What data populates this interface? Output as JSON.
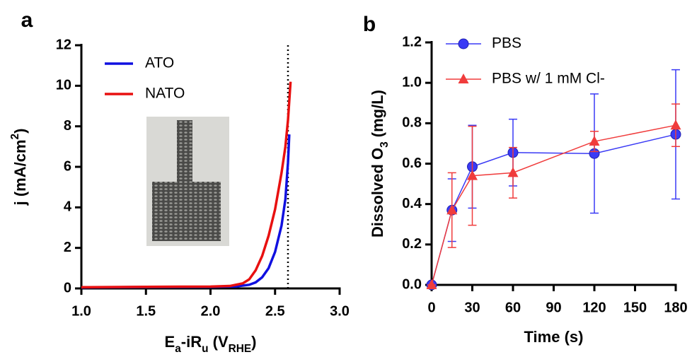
{
  "chart_data": [
    {
      "type": "line",
      "panel_label": "a",
      "x_label": [
        {
          "text": "E"
        },
        {
          "text": "a",
          "style": "sub"
        },
        {
          "text": "-iR"
        },
        {
          "text": "u",
          "style": "sub"
        },
        {
          "text": " (V"
        },
        {
          "text": "RHE",
          "style": "sub"
        },
        {
          "text": ")"
        }
      ],
      "y_label": [
        {
          "text": "j (mA/cm"
        },
        {
          "text": "2",
          "style": "super"
        },
        {
          "text": ")"
        }
      ],
      "xlim": [
        1,
        3
      ],
      "xticks": [
        {
          "value": 1,
          "label": "1.0"
        },
        1.5,
        {
          "value": 2,
          "label": "2.0"
        },
        2.5,
        {
          "value": 3,
          "label": "3.0"
        }
      ],
      "ylim": [
        0,
        12
      ],
      "yticks": [
        0,
        2,
        4,
        6,
        8,
        10,
        12
      ],
      "vline": 2.6,
      "series": [
        {
          "name": "ATO",
          "color": "#1010e0",
          "x": [
            1.0,
            1.5,
            2.0,
            2.2,
            2.3,
            2.35,
            2.4,
            2.45,
            2.5,
            2.55,
            2.58,
            2.6,
            2.61
          ],
          "values": [
            0.05,
            0.07,
            0.08,
            0.1,
            0.18,
            0.3,
            0.55,
            1.0,
            1.8,
            3.1,
            4.4,
            6.2,
            7.6
          ]
        },
        {
          "name": "NATO",
          "color": "#e81010",
          "x": [
            1.0,
            1.5,
            2.0,
            2.15,
            2.25,
            2.3,
            2.35,
            2.4,
            2.45,
            2.5,
            2.55,
            2.58,
            2.6,
            2.62
          ],
          "values": [
            0.06,
            0.08,
            0.09,
            0.12,
            0.25,
            0.45,
            0.9,
            1.6,
            2.6,
            3.9,
            5.7,
            7.0,
            8.3,
            10.2
          ]
        }
      ]
    },
    {
      "type": "line",
      "panel_label": "b",
      "x_label": [
        {
          "text": "Time (s)"
        }
      ],
      "y_label": [
        {
          "text": "Dissolved O"
        },
        {
          "text": "3",
          "style": "sub"
        },
        {
          "text": " (mg/L)"
        }
      ],
      "xlim": [
        0,
        180
      ],
      "xticks": [
        0,
        30,
        60,
        90,
        120,
        150,
        180
      ],
      "ylim": [
        0,
        1.2
      ],
      "yticks": [
        {
          "value": 0,
          "label": "0.0"
        },
        0.2,
        0.4,
        0.6,
        0.8,
        {
          "value": 1,
          "label": "1.0"
        },
        1.2
      ],
      "series": [
        {
          "name": "PBS",
          "color": "#3a3af5",
          "marker": "circle",
          "x": [
            0,
            15,
            30,
            60,
            120,
            180
          ],
          "values": [
            0,
            0.37,
            0.585,
            0.655,
            0.65,
            0.745
          ],
          "errors": [
            0,
            0.155,
            0.205,
            0.165,
            0.295,
            0.32
          ]
        },
        {
          "name": "PBS w/ 1 mM Cl-",
          "color": "#f03c3c",
          "marker": "triangle",
          "x": [
            0,
            15,
            30,
            60,
            120,
            180
          ],
          "values": [
            0,
            0.37,
            0.54,
            0.555,
            0.71,
            0.79
          ],
          "errors": [
            0,
            0.185,
            0.245,
            0.125,
            0.05,
            0.105
          ]
        }
      ]
    }
  ]
}
